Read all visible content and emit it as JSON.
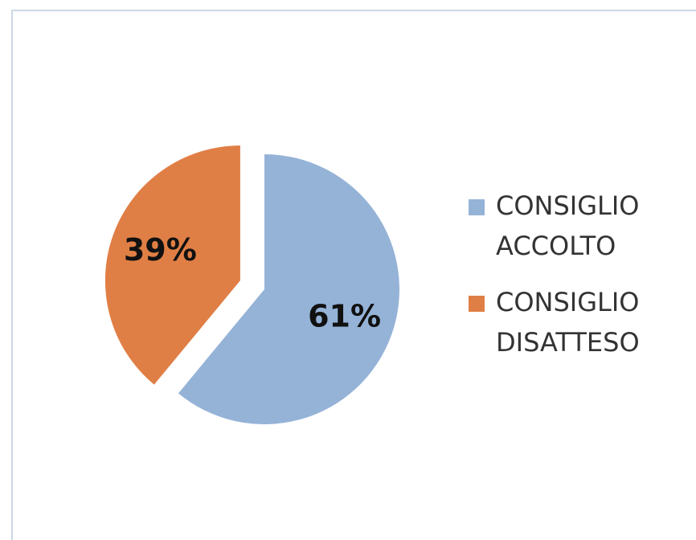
{
  "chart_data": {
    "type": "pie",
    "slices": [
      {
        "label": "CONSIGLIO ACCOLTO",
        "legend_lines": [
          "CONSIGLIO",
          "ACCOLTO"
        ],
        "value": 61,
        "value_label": "61%",
        "color": "#95b3d7"
      },
      {
        "label": "CONSIGLIO DISATTESO",
        "legend_lines": [
          "CONSIGLIO",
          "DISATTESO"
        ],
        "value": 39,
        "value_label": "39%",
        "color": "#e07f45"
      }
    ],
    "exploded": true,
    "start_angle_deg": 0,
    "direction": "clockwise",
    "legend_position": "right"
  }
}
